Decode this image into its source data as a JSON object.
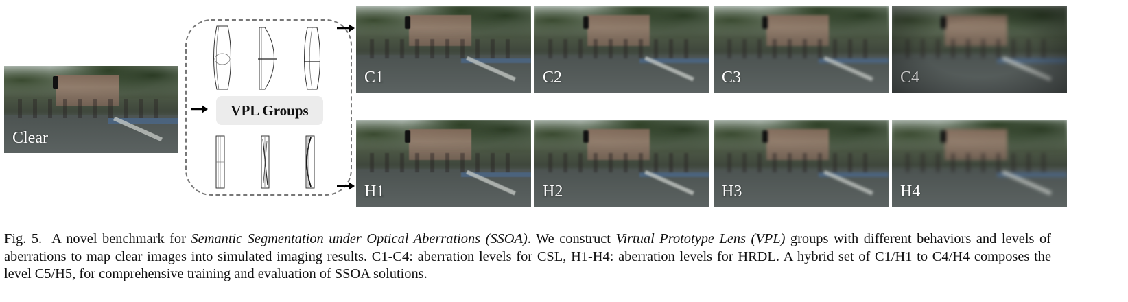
{
  "clear_image": {
    "label": "Clear"
  },
  "vpl_groups": {
    "label": "VPL Groups"
  },
  "csl_row": {
    "labels": [
      "C1",
      "C2",
      "C3",
      "C4"
    ]
  },
  "hrdl_row": {
    "labels": [
      "H1",
      "H2",
      "H3",
      "H4"
    ]
  },
  "caption": {
    "fig": "Fig. 5.",
    "t1": "A novel benchmark for",
    "i1": "Semantic Segmentation under Optical Aberrations (SSOA)",
    "t2": ". We construct",
    "i2": "Virtual Prototype Lens (VPL)",
    "t3": "groups with different behaviors and levels of aberrations to map clear images into simulated imaging results. C1-C4: aberration levels for CSL, H1-H4: aberration levels for HRDL. A hybrid set of C1/H1 to C4/H4 composes the level C5/H5, for comprehensive training and evaluation of SSOA solutions."
  }
}
